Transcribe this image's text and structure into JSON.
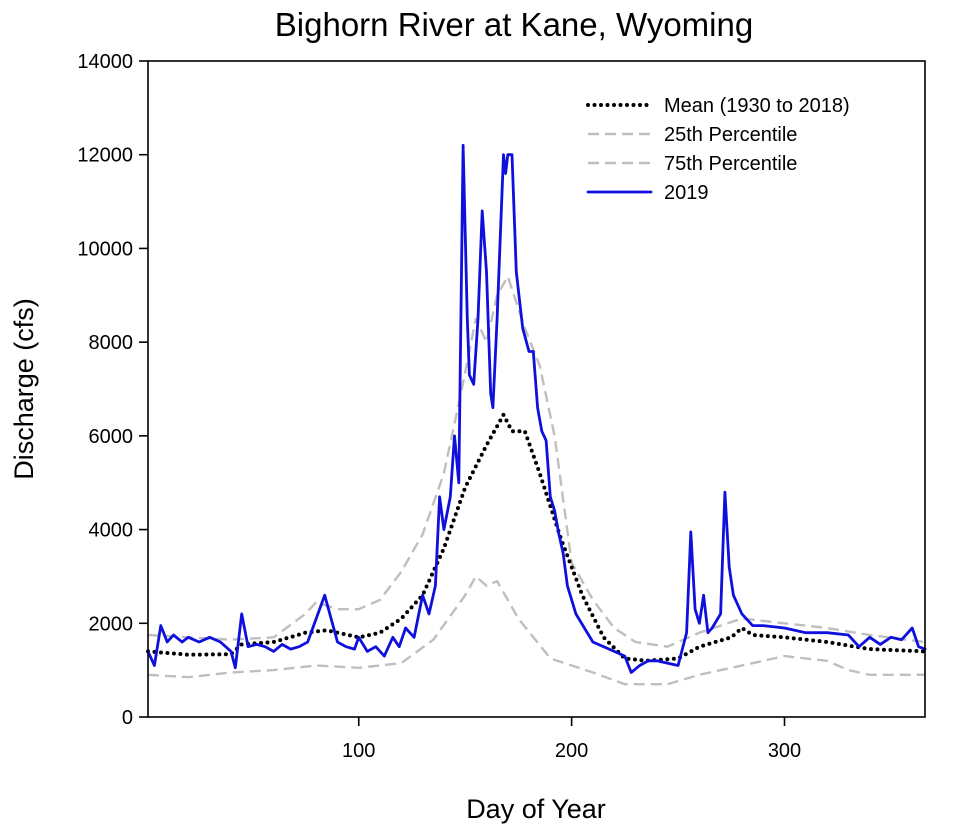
{
  "chart_data": {
    "type": "line",
    "title": "Bighorn River at Kane, Wyoming",
    "xlabel": "Day of Year",
    "ylabel": "Discharge (cfs)",
    "xlim": [
      1,
      366
    ],
    "ylim": [
      0,
      14000
    ],
    "x_ticks": [
      100,
      200,
      300
    ],
    "y_ticks": [
      0,
      2000,
      4000,
      6000,
      8000,
      10000,
      12000,
      14000
    ],
    "grid": false,
    "legend_position": "top-right",
    "series": [
      {
        "name": "Mean (1930 to 2018)",
        "color": "#000000",
        "style": "dotted",
        "points": [
          [
            1,
            1400
          ],
          [
            20,
            1330
          ],
          [
            40,
            1340
          ],
          [
            45,
            1550
          ],
          [
            60,
            1600
          ],
          [
            75,
            1800
          ],
          [
            85,
            1850
          ],
          [
            100,
            1700
          ],
          [
            110,
            1800
          ],
          [
            120,
            2100
          ],
          [
            130,
            2600
          ],
          [
            140,
            3600
          ],
          [
            150,
            4900
          ],
          [
            160,
            5800
          ],
          [
            168,
            6450
          ],
          [
            172,
            6100
          ],
          [
            178,
            6100
          ],
          [
            185,
            5200
          ],
          [
            195,
            3800
          ],
          [
            205,
            2600
          ],
          [
            215,
            1700
          ],
          [
            225,
            1250
          ],
          [
            235,
            1200
          ],
          [
            250,
            1250
          ],
          [
            260,
            1500
          ],
          [
            275,
            1700
          ],
          [
            280,
            1900
          ],
          [
            285,
            1750
          ],
          [
            300,
            1700
          ],
          [
            320,
            1600
          ],
          [
            340,
            1450
          ],
          [
            366,
            1400
          ]
        ]
      },
      {
        "name": "25th Percentile",
        "color": "#bfbfbf",
        "style": "dashed",
        "points": [
          [
            1,
            900
          ],
          [
            20,
            850
          ],
          [
            40,
            950
          ],
          [
            60,
            1000
          ],
          [
            80,
            1100
          ],
          [
            100,
            1050
          ],
          [
            120,
            1150
          ],
          [
            135,
            1650
          ],
          [
            150,
            2600
          ],
          [
            155,
            3000
          ],
          [
            160,
            2800
          ],
          [
            165,
            2900
          ],
          [
            175,
            2100
          ],
          [
            190,
            1250
          ],
          [
            210,
            950
          ],
          [
            225,
            700
          ],
          [
            245,
            700
          ],
          [
            260,
            900
          ],
          [
            280,
            1100
          ],
          [
            300,
            1300
          ],
          [
            320,
            1200
          ],
          [
            330,
            1000
          ],
          [
            340,
            900
          ],
          [
            366,
            900
          ]
        ]
      },
      {
        "name": "75th Percentile",
        "color": "#bfbfbf",
        "style": "dashed",
        "points": [
          [
            1,
            1750
          ],
          [
            20,
            1700
          ],
          [
            40,
            1650
          ],
          [
            60,
            1700
          ],
          [
            75,
            2200
          ],
          [
            80,
            2450
          ],
          [
            90,
            2300
          ],
          [
            100,
            2300
          ],
          [
            110,
            2500
          ],
          [
            120,
            3100
          ],
          [
            130,
            3900
          ],
          [
            140,
            5200
          ],
          [
            148,
            6900
          ],
          [
            155,
            8500
          ],
          [
            160,
            8000
          ],
          [
            165,
            9000
          ],
          [
            170,
            9400
          ],
          [
            178,
            8300
          ],
          [
            185,
            7500
          ],
          [
            192,
            6000
          ],
          [
            200,
            3300
          ],
          [
            210,
            2500
          ],
          [
            220,
            1900
          ],
          [
            230,
            1600
          ],
          [
            245,
            1500
          ],
          [
            260,
            1800
          ],
          [
            280,
            2100
          ],
          [
            300,
            2000
          ],
          [
            320,
            1900
          ],
          [
            340,
            1750
          ],
          [
            366,
            1600
          ]
        ]
      },
      {
        "name": "2019",
        "color": "#1010dd",
        "style": "solid",
        "points": [
          [
            1,
            1400
          ],
          [
            4,
            1100
          ],
          [
            7,
            1950
          ],
          [
            10,
            1600
          ],
          [
            13,
            1750
          ],
          [
            17,
            1600
          ],
          [
            20,
            1700
          ],
          [
            25,
            1600
          ],
          [
            30,
            1700
          ],
          [
            35,
            1600
          ],
          [
            40,
            1400
          ],
          [
            42,
            1050
          ],
          [
            45,
            2200
          ],
          [
            48,
            1500
          ],
          [
            52,
            1550
          ],
          [
            56,
            1500
          ],
          [
            60,
            1400
          ],
          [
            64,
            1550
          ],
          [
            68,
            1450
          ],
          [
            72,
            1500
          ],
          [
            76,
            1600
          ],
          [
            80,
            2100
          ],
          [
            84,
            2600
          ],
          [
            87,
            2100
          ],
          [
            90,
            1600
          ],
          [
            94,
            1500
          ],
          [
            98,
            1450
          ],
          [
            100,
            1700
          ],
          [
            104,
            1400
          ],
          [
            108,
            1500
          ],
          [
            112,
            1300
          ],
          [
            116,
            1700
          ],
          [
            119,
            1500
          ],
          [
            122,
            1900
          ],
          [
            126,
            1700
          ],
          [
            130,
            2600
          ],
          [
            133,
            2200
          ],
          [
            136,
            2800
          ],
          [
            138,
            4700
          ],
          [
            140,
            4000
          ],
          [
            143,
            4700
          ],
          [
            145,
            6000
          ],
          [
            147,
            5000
          ],
          [
            149,
            12200
          ],
          [
            151,
            8500
          ],
          [
            152,
            7300
          ],
          [
            154,
            7100
          ],
          [
            156,
            8500
          ],
          [
            158,
            10800
          ],
          [
            160,
            9500
          ],
          [
            162,
            6900
          ],
          [
            163,
            6600
          ],
          [
            165,
            8500
          ],
          [
            168,
            12000
          ],
          [
            169,
            11600
          ],
          [
            170,
            12000
          ],
          [
            172,
            12000
          ],
          [
            174,
            9500
          ],
          [
            177,
            8300
          ],
          [
            180,
            7800
          ],
          [
            182,
            7800
          ],
          [
            184,
            6600
          ],
          [
            186,
            6100
          ],
          [
            188,
            5900
          ],
          [
            190,
            4700
          ],
          [
            192,
            4400
          ],
          [
            194,
            3900
          ],
          [
            196,
            3500
          ],
          [
            198,
            2800
          ],
          [
            202,
            2200
          ],
          [
            206,
            1900
          ],
          [
            210,
            1600
          ],
          [
            215,
            1500
          ],
          [
            220,
            1400
          ],
          [
            225,
            1300
          ],
          [
            228,
            950
          ],
          [
            232,
            1100
          ],
          [
            236,
            1200
          ],
          [
            240,
            1200
          ],
          [
            245,
            1150
          ],
          [
            250,
            1100
          ],
          [
            254,
            1800
          ],
          [
            256,
            3950
          ],
          [
            258,
            2300
          ],
          [
            260,
            2000
          ],
          [
            262,
            2600
          ],
          [
            264,
            1800
          ],
          [
            266,
            1900
          ],
          [
            268,
            2050
          ],
          [
            270,
            2200
          ],
          [
            272,
            4800
          ],
          [
            274,
            3200
          ],
          [
            276,
            2600
          ],
          [
            280,
            2200
          ],
          [
            285,
            1950
          ],
          [
            290,
            1950
          ],
          [
            300,
            1900
          ],
          [
            310,
            1800
          ],
          [
            320,
            1800
          ],
          [
            330,
            1750
          ],
          [
            335,
            1500
          ],
          [
            340,
            1700
          ],
          [
            345,
            1550
          ],
          [
            350,
            1700
          ],
          [
            355,
            1650
          ],
          [
            360,
            1900
          ],
          [
            363,
            1500
          ],
          [
            366,
            1450
          ]
        ]
      }
    ]
  }
}
